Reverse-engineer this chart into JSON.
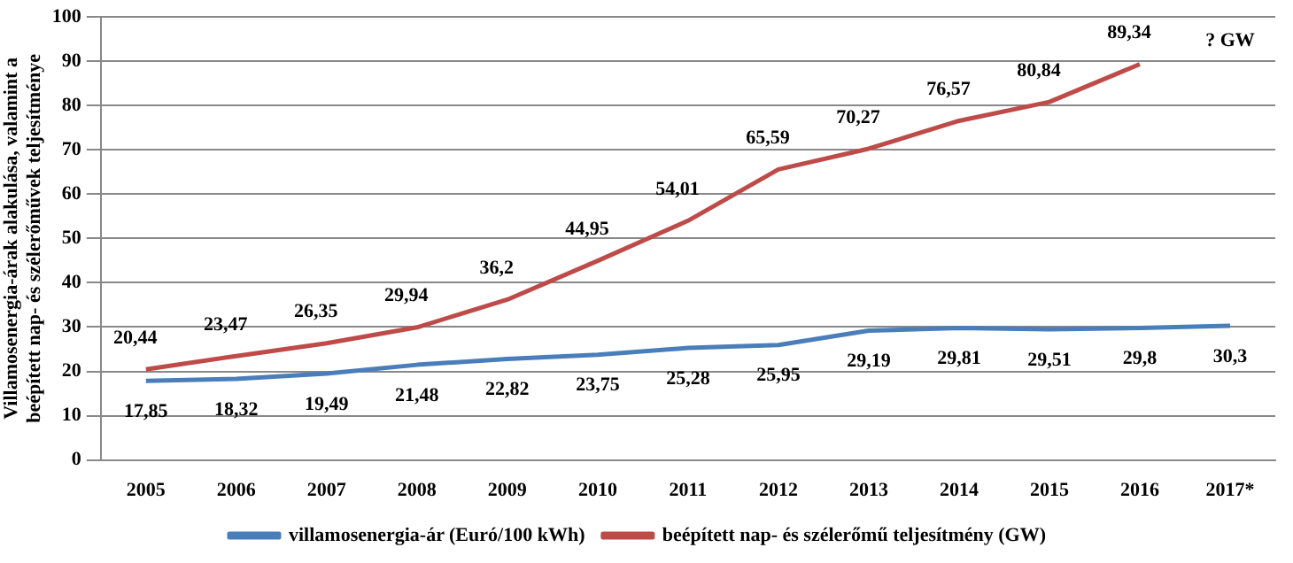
{
  "chart_data": {
    "type": "line",
    "ylabel": "Villamosenergia-árak alakulása, valamint a beépített nap- és szélerőművek teljesítménye",
    "categories": [
      "2005",
      "2006",
      "2007",
      "2008",
      "2009",
      "2010",
      "2011",
      "2012",
      "2013",
      "2014",
      "2015",
      "2016",
      "2017*"
    ],
    "series": [
      {
        "name": "villamosenergia-ár (Euró/100 kWh)",
        "color": "#4a7ebb",
        "values": [
          17.85,
          18.32,
          19.49,
          21.48,
          22.82,
          23.75,
          25.28,
          25.95,
          29.19,
          29.81,
          29.51,
          29.8,
          30.3
        ],
        "value_labels": [
          "17,85",
          "18,32",
          "19,49",
          "21,48",
          "22,82",
          "23,75",
          "25,28",
          "25,95",
          "29,19",
          "29,81",
          "29,51",
          "29,8",
          "30,3"
        ]
      },
      {
        "name": "beépített nap- és szélerőmű teljesítmény (GW)",
        "color": "#be4b48",
        "values": [
          20.44,
          23.47,
          26.35,
          29.94,
          36.2,
          44.95,
          54.01,
          65.59,
          70.27,
          76.57,
          80.84,
          89.34,
          null
        ],
        "value_labels": [
          "20,44",
          "23,47",
          "26,35",
          "29,94",
          "36,2",
          "44,95",
          "54,01",
          "65,59",
          "70,27",
          "76,57",
          "80,84",
          "89,34",
          null
        ]
      }
    ],
    "ylim": [
      0,
      100
    ],
    "yticks": [
      0,
      10,
      20,
      30,
      40,
      50,
      60,
      70,
      80,
      90,
      100
    ],
    "grid": "y",
    "legend": "bottom",
    "marker": "none",
    "annotations": [
      "? GW"
    ]
  }
}
